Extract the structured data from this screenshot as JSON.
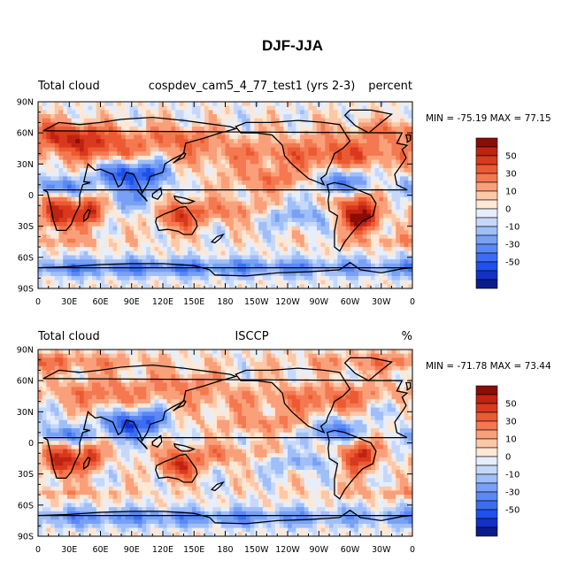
{
  "page_title": "DJF-JJA",
  "chart_data": [
    {
      "type": "heatmap",
      "title": "DJF-JJA",
      "left_label": "Total cloud",
      "center_label": "cospdev_cam5_4_77_test1 (yrs 2-3)",
      "right_label": "percent",
      "stats_text": "MIN = -75.19 MAX =  77.15",
      "min": -75.19,
      "max": 77.15,
      "x_ticks": [
        "0",
        "30E",
        "60E",
        "90E",
        "120E",
        "150E",
        "180",
        "150W",
        "120W",
        "90W",
        "60W",
        "30W",
        "0"
      ],
      "y_ticks": [
        "90N",
        "60N",
        "30N",
        "0",
        "30S",
        "60S",
        "90S"
      ],
      "xlim": [
        0,
        360
      ],
      "ylim": [
        -90,
        90
      ],
      "colorbar_levels": [
        -70,
        -60,
        -50,
        -40,
        -30,
        -20,
        -10,
        -5,
        0,
        5,
        10,
        20,
        30,
        40,
        50,
        60,
        70
      ],
      "colorbar_labels": [
        "50",
        "30",
        "10",
        "0",
        "-10",
        "-30",
        "-50"
      ],
      "colors": [
        "#0a1c8c",
        "#1430c8",
        "#1e50eb",
        "#3c6cf0",
        "#5a88f5",
        "#78a0f5",
        "#a0bef8",
        "#c6d8fa",
        "#e6eefc",
        "#fde8d6",
        "#fcc8a8",
        "#f9a07a",
        "#f47850",
        "#eb5a32",
        "#d9391e",
        "#bf2312",
        "#8c0c06"
      ],
      "grid": false
    },
    {
      "type": "heatmap",
      "left_label": "Total cloud",
      "center_label": "ISCCP",
      "right_label": "%",
      "stats_text": "MIN = -71.78 MAX =  73.44",
      "min": -71.78,
      "max": 73.44,
      "x_ticks": [
        "0",
        "30E",
        "60E",
        "90E",
        "120E",
        "150E",
        "180",
        "150W",
        "120W",
        "90W",
        "60W",
        "30W",
        "0"
      ],
      "y_ticks": [
        "90N",
        "60N",
        "30N",
        "0",
        "30S",
        "60S",
        "90S"
      ],
      "xlim": [
        0,
        360
      ],
      "ylim": [
        -90,
        90
      ],
      "colorbar_levels": [
        -70,
        -60,
        -50,
        -40,
        -30,
        -20,
        -10,
        -5,
        0,
        5,
        10,
        20,
        30,
        40,
        50,
        60,
        70
      ],
      "colorbar_labels": [
        "50",
        "30",
        "10",
        "0",
        "-10",
        "-30",
        "-50"
      ],
      "colors": [
        "#0a1c8c",
        "#1430c8",
        "#1e50eb",
        "#3c6cf0",
        "#5a88f5",
        "#78a0f5",
        "#a0bef8",
        "#c6d8fa",
        "#e6eefc",
        "#fde8d6",
        "#fcc8a8",
        "#f9a07a",
        "#f47850",
        "#eb5a32",
        "#d9391e",
        "#bf2312",
        "#8c0c06"
      ],
      "grid": false
    }
  ]
}
